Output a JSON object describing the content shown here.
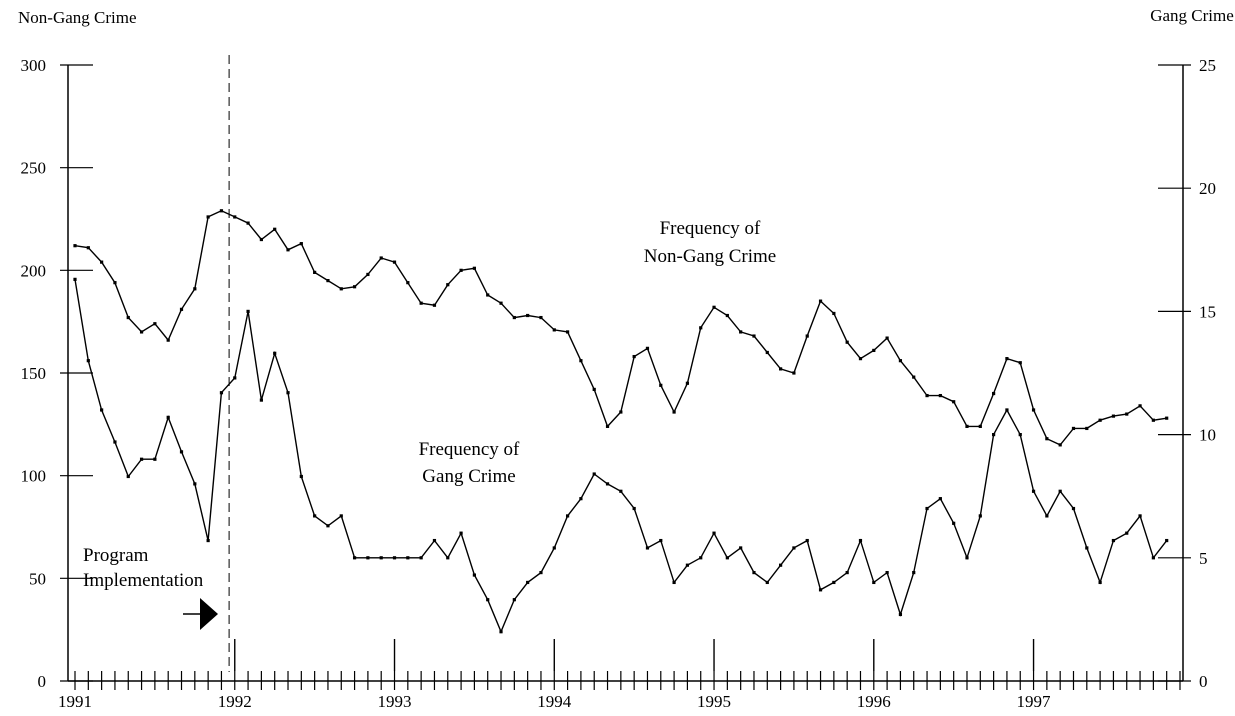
{
  "chart_data": {
    "type": "line",
    "left_axis_title": "Non-Gang Crime",
    "right_axis_title": "Gang Crime",
    "left_ylim": [
      0,
      300
    ],
    "right_ylim": [
      0,
      25
    ],
    "left_ticks": [
      0,
      50,
      100,
      150,
      200,
      250,
      300
    ],
    "right_ticks": [
      0,
      5,
      10,
      15,
      20,
      25
    ],
    "xlim": [
      0,
      83
    ],
    "year_labels": [
      {
        "label": "1991",
        "month": 0
      },
      {
        "label": "1992",
        "month": 12
      },
      {
        "label": "1993",
        "month": 24
      },
      {
        "label": "1994",
        "month": 36
      },
      {
        "label": "1995",
        "month": 48
      },
      {
        "label": "1996",
        "month": 60
      },
      {
        "label": "1997",
        "month": 72
      }
    ],
    "grid": false,
    "series": [
      {
        "name": "Frequency of Non-Gang Crime",
        "axis": "left",
        "label_lines": [
          "Frequency of",
          "Non-Gang Crime"
        ],
        "values": [
          212,
          211,
          204,
          194,
          177,
          170,
          174,
          166,
          181,
          191,
          226,
          229,
          226,
          223,
          215,
          220,
          210,
          213,
          199,
          195,
          191,
          192,
          198,
          206,
          204,
          194,
          184,
          183,
          193,
          200,
          201,
          188,
          184,
          177,
          178,
          177,
          171,
          170,
          156,
          142,
          124,
          131,
          158,
          162,
          144,
          131,
          145,
          172,
          182,
          178,
          170,
          168,
          160,
          152,
          150,
          168,
          185,
          179,
          165,
          157,
          161,
          167,
          156,
          148,
          139,
          139,
          136,
          124,
          124,
          140,
          157,
          155,
          132,
          118,
          115,
          123,
          123,
          127,
          129,
          130,
          134,
          127,
          128
        ]
      },
      {
        "name": "Frequency of Gang Crime",
        "axis": "right",
        "label_lines": [
          "Frequency of",
          "Gang Crime"
        ],
        "values": [
          16.3,
          13,
          11,
          9.7,
          8.3,
          9,
          9,
          10.7,
          9.3,
          8,
          5.7,
          11.7,
          12.3,
          15,
          11.4,
          13.3,
          11.7,
          8.3,
          6.7,
          6.3,
          6.7,
          5,
          5,
          5,
          5,
          5,
          5,
          5.7,
          5,
          6,
          4.3,
          3.3,
          2,
          3.3,
          4,
          4.4,
          5.4,
          6.7,
          7.4,
          8.4,
          8,
          7.7,
          7,
          5.4,
          5.7,
          4,
          4.7,
          5,
          6,
          5,
          5.4,
          4.4,
          4,
          4.7,
          5.4,
          5.7,
          3.7,
          4,
          4.4,
          5.7,
          4,
          4.4,
          2.7,
          4.4,
          7,
          7.4,
          6.4,
          5,
          6.7,
          10,
          11,
          10,
          7.7,
          6.7,
          7.7,
          7,
          5.4,
          4,
          5.7,
          6,
          6.7,
          5,
          5.7
        ]
      }
    ],
    "annotation": {
      "label_lines": [
        "Program",
        "Implementation"
      ],
      "month": 11.5
    }
  }
}
